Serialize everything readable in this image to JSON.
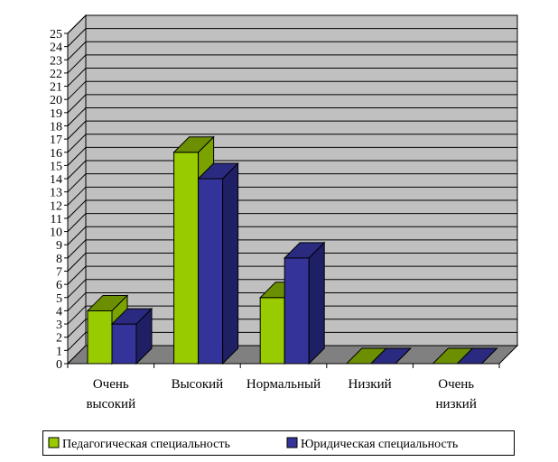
{
  "chart_data": {
    "type": "bar",
    "title": "",
    "xlabel": "",
    "ylabel": "",
    "categories": [
      [
        "Очень",
        "высокий"
      ],
      [
        "Высокий"
      ],
      [
        "Нормальный"
      ],
      [
        "Низкий"
      ],
      [
        "Очень",
        "низкий"
      ]
    ],
    "series": [
      {
        "name": "Педагогическая специальность",
        "values": [
          4,
          16,
          5,
          0,
          0
        ]
      },
      {
        "name": "Юридическая специальность",
        "values": [
          3,
          14,
          8,
          0,
          0
        ]
      }
    ],
    "ylim": [
      0,
      25
    ],
    "yticks": [
      "0",
      "1",
      "2",
      "3",
      "4",
      "5",
      "6",
      "7",
      "8",
      "9",
      "10",
      "11",
      "12",
      "13",
      "14",
      "15",
      "16",
      "17",
      "18",
      "19",
      "20",
      "21",
      "22",
      "23",
      "24",
      "25"
    ],
    "grid": true,
    "projection": "3d",
    "legend_position": "bottom"
  },
  "colors": {
    "series_1_front": "#99cc00",
    "series_1_top": "#6b8f00",
    "series_1_side": "#7aa300",
    "series_2_front": "#333399",
    "series_2_top": "#2a2a80",
    "series_2_side": "#1f1f66",
    "back_wall": "#c0c0c0",
    "side_wall": "#c0c0c0",
    "floor": "#808080",
    "grid": "#000000"
  }
}
